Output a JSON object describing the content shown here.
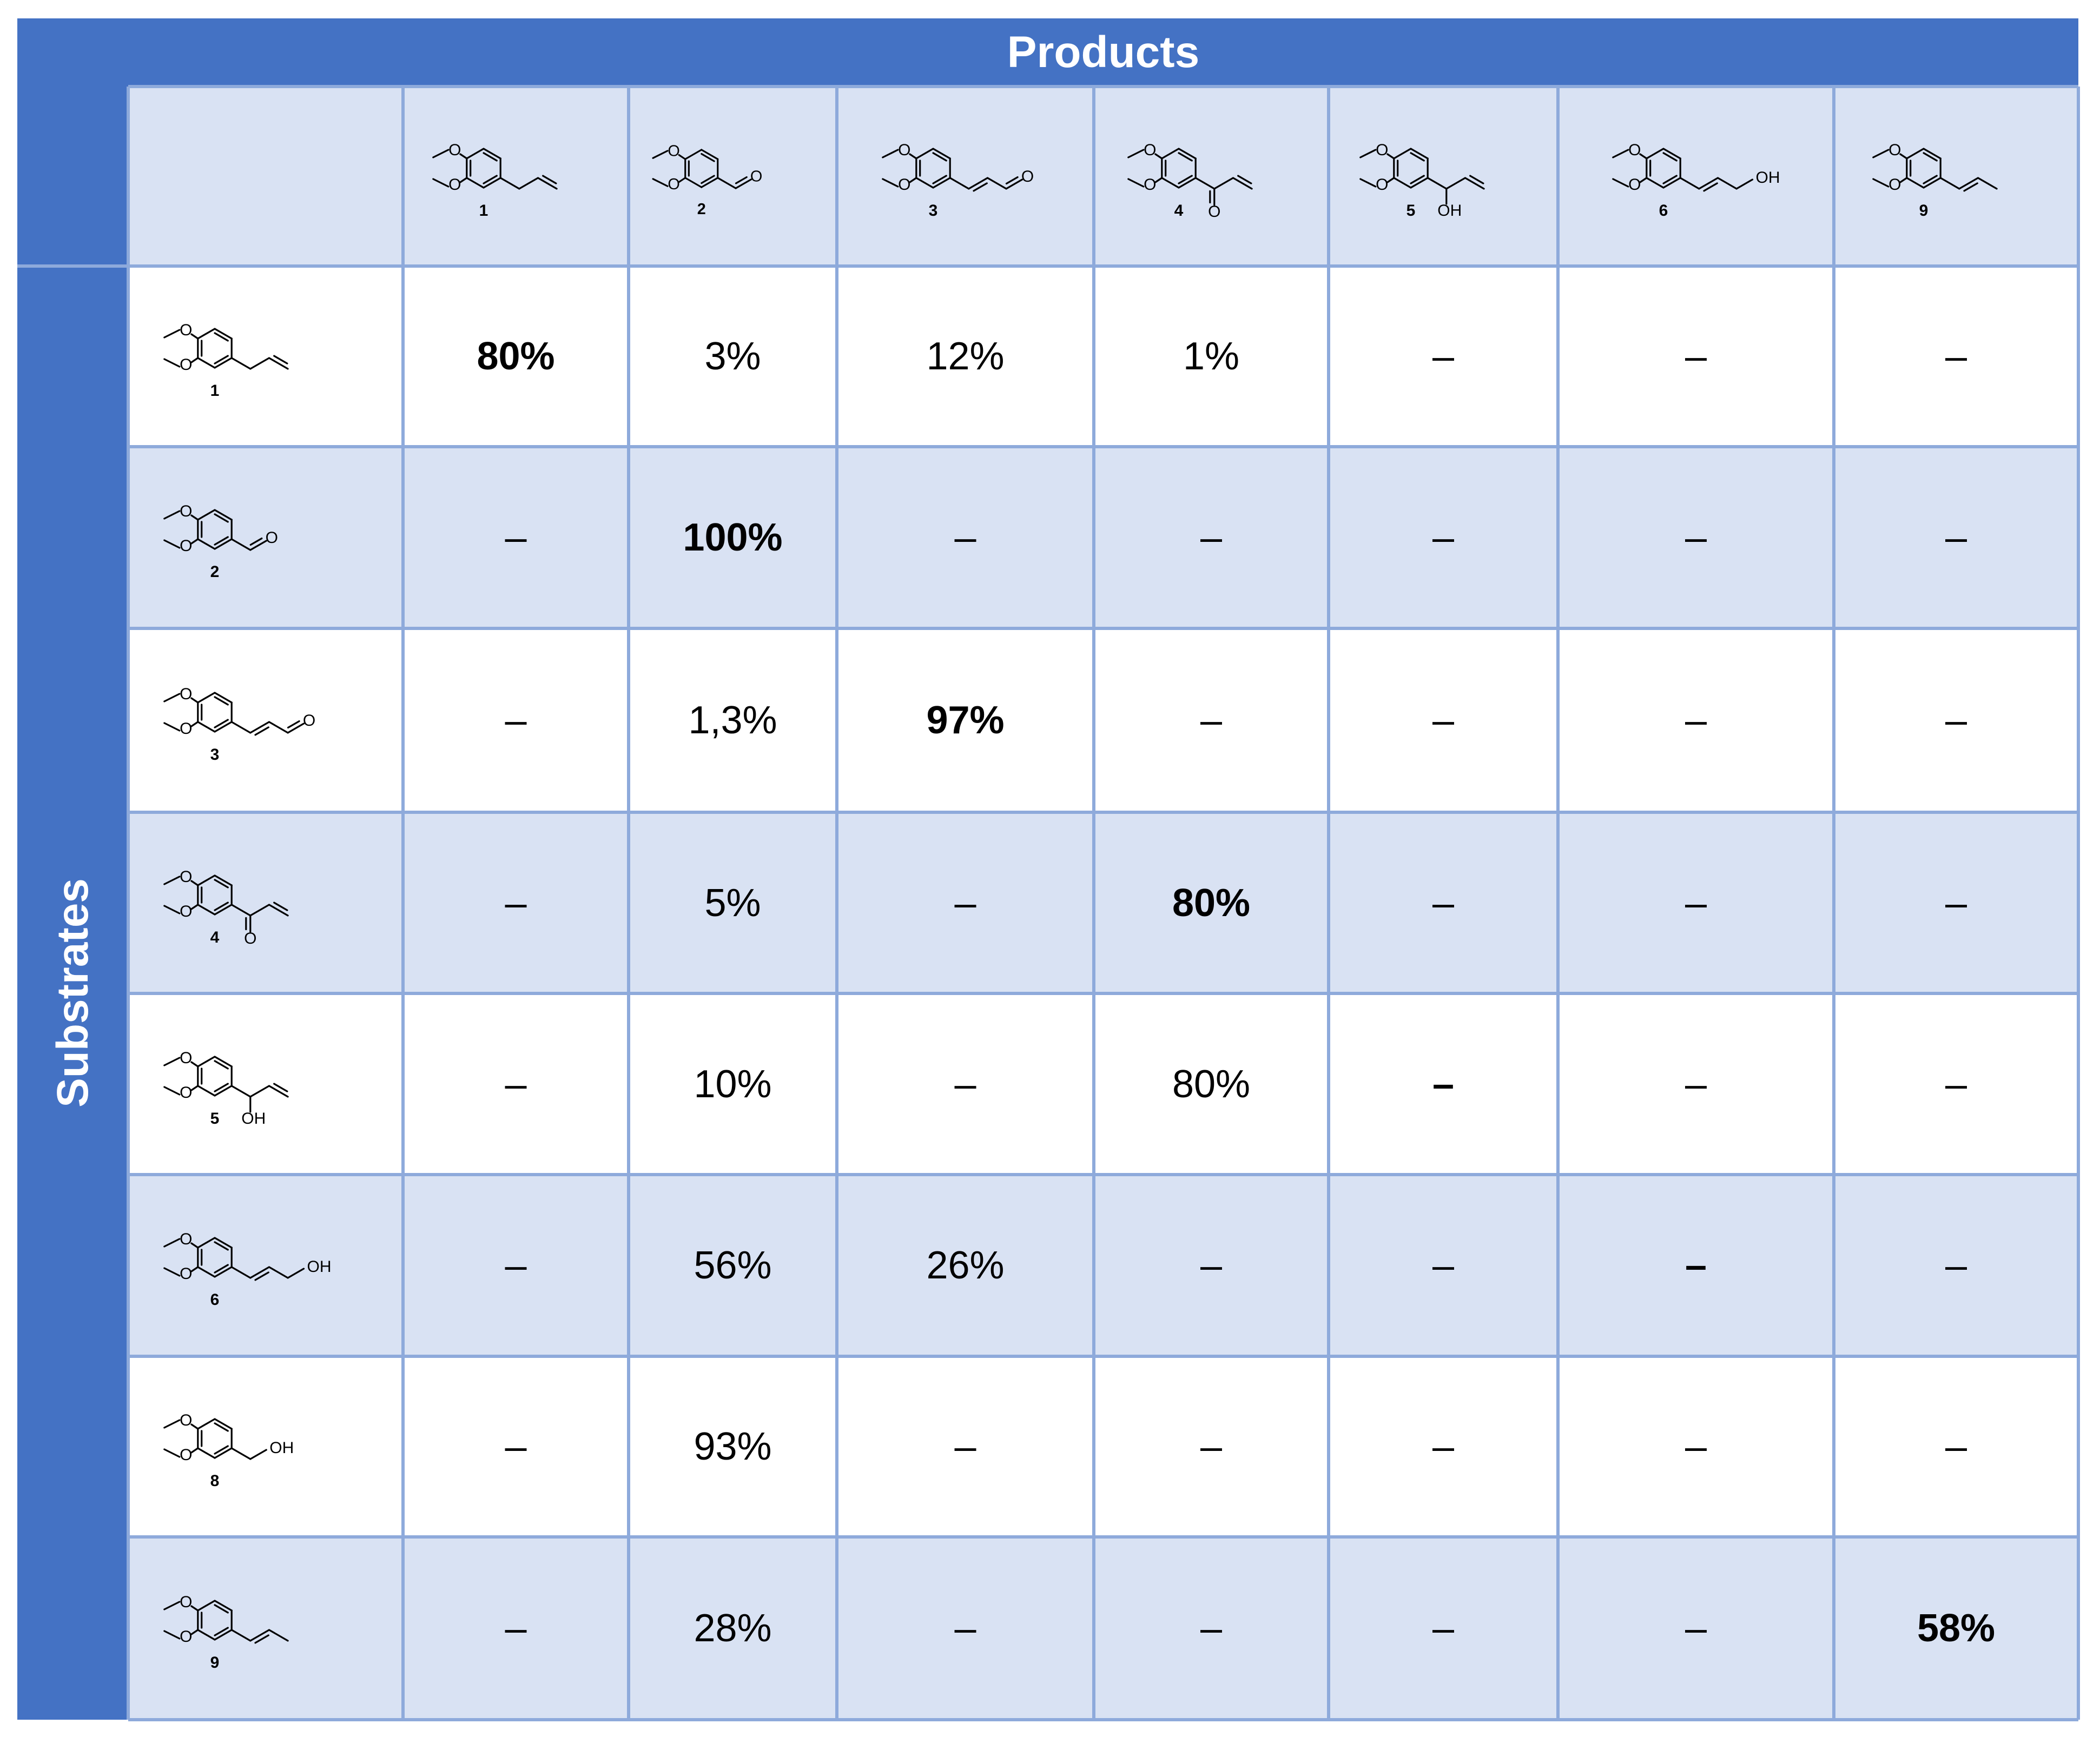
{
  "products_title": "Products",
  "substrates_title": "Substrates",
  "columns": [
    {
      "compound": "1",
      "structure": "allyl"
    },
    {
      "compound": "2",
      "structure": "aldehyde"
    },
    {
      "compound": "3",
      "structure": "cinnamaldehyde"
    },
    {
      "compound": "4",
      "structure": "vinyl-ketone"
    },
    {
      "compound": "5",
      "structure": "allyl-alcohol"
    },
    {
      "compound": "6",
      "structure": "cinnamyl-alcohol"
    },
    {
      "compound": "9",
      "structure": "propenyl"
    }
  ],
  "rows": [
    {
      "compound": "1",
      "structure": "allyl",
      "values": [
        "80%",
        "3%",
        "12%",
        "1%",
        "–",
        "–",
        "–"
      ],
      "bold": [
        true,
        false,
        false,
        false,
        false,
        false,
        false
      ]
    },
    {
      "compound": "2",
      "structure": "aldehyde",
      "values": [
        "–",
        "100%",
        "–",
        "–",
        "–",
        "–",
        "–"
      ],
      "bold": [
        false,
        true,
        false,
        false,
        false,
        false,
        false
      ]
    },
    {
      "compound": "3",
      "structure": "cinnamaldehyde",
      "values": [
        "–",
        "1,3%",
        "97%",
        "–",
        "–",
        "–",
        "–"
      ],
      "bold": [
        false,
        false,
        true,
        false,
        false,
        false,
        false
      ]
    },
    {
      "compound": "4",
      "structure": "vinyl-ketone",
      "values": [
        "–",
        "5%",
        "–",
        "80%",
        "–",
        "–",
        "–"
      ],
      "bold": [
        false,
        false,
        false,
        true,
        false,
        false,
        false
      ]
    },
    {
      "compound": "5",
      "structure": "allyl-alcohol",
      "values": [
        "–",
        "10%",
        "–",
        "80%",
        "–",
        "–",
        "–"
      ],
      "bold": [
        false,
        false,
        false,
        false,
        true,
        false,
        false
      ]
    },
    {
      "compound": "6",
      "structure": "cinnamyl-alcohol",
      "values": [
        "–",
        "56%",
        "26%",
        "–",
        "–",
        "–",
        "–"
      ],
      "bold": [
        false,
        false,
        false,
        false,
        false,
        true,
        false
      ]
    },
    {
      "compound": "8",
      "structure": "benzyl-alcohol",
      "values": [
        "–",
        "93%",
        "–",
        "–",
        "–",
        "–",
        "–"
      ],
      "bold": [
        false,
        false,
        false,
        false,
        false,
        false,
        false
      ]
    },
    {
      "compound": "9",
      "structure": "propenyl",
      "values": [
        "–",
        "28%",
        "–",
        "–",
        "–",
        "–",
        "58%"
      ],
      "bold": [
        false,
        false,
        false,
        false,
        false,
        false,
        true
      ]
    }
  ],
  "atom_labels": {
    "oxygen": "O",
    "hydroxyl": "OH"
  },
  "colors": {
    "header": "#4472C4",
    "row_alt": "#D9E2F3",
    "grid": "#8EAADB",
    "header_text": "#FFFFFF"
  }
}
